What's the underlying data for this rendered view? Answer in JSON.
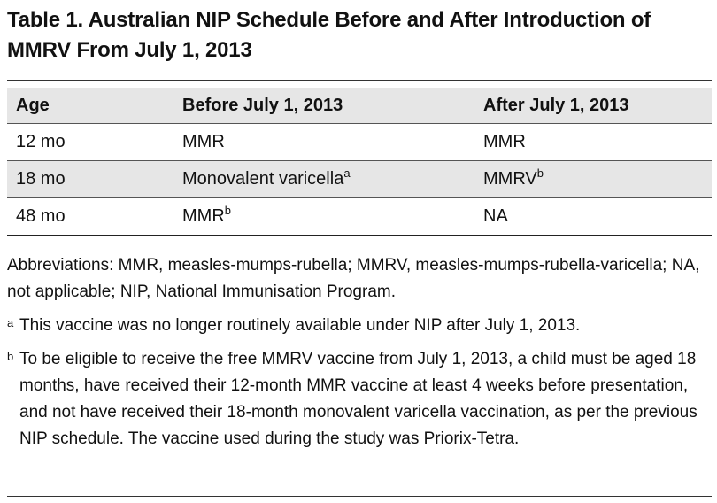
{
  "title": "Table 1. Australian NIP Schedule Before and After Introduction of MMRV From July 1, 2013",
  "table": {
    "headers": [
      "Age",
      "Before July 1, 2013",
      "After July 1, 2013"
    ],
    "rows": [
      {
        "age": "12 mo",
        "before": "MMR",
        "before_note": "",
        "after": "MMR",
        "after_note": ""
      },
      {
        "age": "18 mo",
        "before": "Monovalent varicella",
        "before_note": "a",
        "after": "MMRV",
        "after_note": "b"
      },
      {
        "age": "48 mo",
        "before": "MMR",
        "before_note": "b",
        "after": "NA",
        "after_note": ""
      }
    ]
  },
  "abbreviations": "Abbreviations: MMR, measles-mumps-rubella; MMRV, measles-mumps-rubella-varicella; NA, not applicable; NIP, National Immunisation Program.",
  "footnotes": [
    {
      "mark": "a",
      "text": "This vaccine was no longer routinely available under NIP after July 1, 2013."
    },
    {
      "mark": "b",
      "text": "To be eligible to receive the free MMRV vaccine from July 1, 2013, a child must be aged 18 months, have received their 12-month MMR vaccine at least 4 weeks before presentation, and not have received their 18-month monovalent varicella vaccination, as per the previous NIP schedule. The vaccine used during the study was Priorix-Tetra."
    }
  ]
}
